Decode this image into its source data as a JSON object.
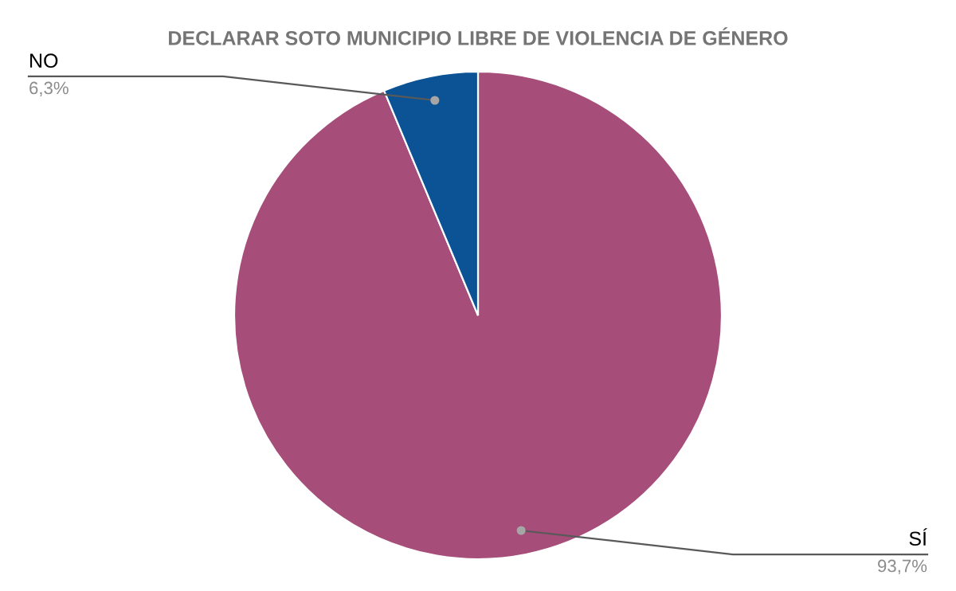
{
  "chart_data": {
    "type": "pie",
    "title": "DECLARAR SOTO MUNICIPIO LIBRE DE VIOLENCIA DE GÉNERO",
    "categories": [
      "SÍ",
      "NO"
    ],
    "values": [
      93.7,
      6.3
    ],
    "colors": [
      "#a64d79",
      "#0b5394"
    ],
    "value_labels": [
      "93,7%",
      "6,3%"
    ],
    "legend": false
  }
}
